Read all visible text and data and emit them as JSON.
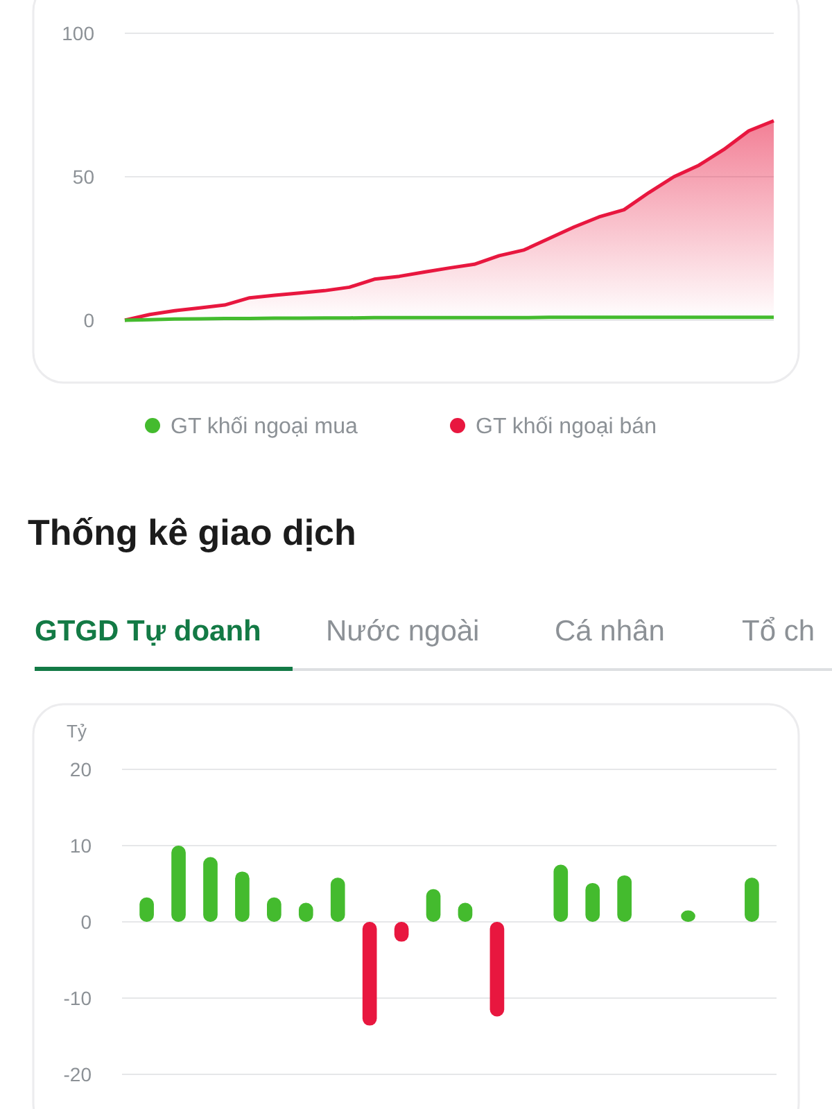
{
  "chart_data": [
    {
      "type": "line",
      "categories": [
        null,
        null,
        null,
        null,
        null,
        null,
        null,
        null,
        null,
        null,
        null,
        null,
        null,
        null,
        null,
        null,
        null,
        null,
        null,
        null,
        null,
        null,
        null,
        null,
        null,
        null,
        null
      ],
      "ylim": [
        0,
        100
      ],
      "yticks": [
        0,
        50,
        100
      ],
      "grid": "y",
      "legend": "bottom",
      "series": [
        {
          "name": "GT khối ngoại mua",
          "type": "line",
          "color": "#44bb2e",
          "values": [
            0,
            0.2,
            0.4,
            0.5,
            0.6,
            0.6,
            0.7,
            0.7,
            0.8,
            0.8,
            0.9,
            0.9,
            0.9,
            0.9,
            0.9,
            0.9,
            0.9,
            1,
            1,
            1,
            1,
            1,
            1,
            1,
            1,
            1,
            1
          ]
        },
        {
          "name": "GT khối ngoại bán",
          "type": "area",
          "color": "#e8173f",
          "values": [
            0,
            2,
            3.3,
            4.3,
            5.3,
            7.8,
            8.7,
            9.5,
            10.3,
            11.5,
            14.3,
            15.3,
            16.8,
            18.2,
            19.5,
            22.5,
            24.5,
            28.5,
            32.5,
            36,
            38.5,
            44.5,
            50,
            54,
            59.5,
            66,
            69.5
          ]
        }
      ]
    },
    {
      "type": "bar",
      "title": "Thống kê giao dịch",
      "annotations": [
        "GTGD Tự doanh",
        "Nước ngoài",
        "Cá nhân",
        "Tổ ch"
      ],
      "ylabel": "Tỷ",
      "categories": [
        null,
        null,
        null,
        null,
        null,
        null,
        null,
        null,
        null,
        null,
        null,
        null,
        null,
        null,
        null,
        null,
        null,
        null,
        null,
        null
      ],
      "ylim": [
        -20,
        20
      ],
      "yticks": [
        -20,
        -10,
        0,
        10,
        20
      ],
      "grid": "y",
      "values": [
        3.2,
        10,
        8.5,
        6.6,
        3.2,
        2.5,
        5.8,
        -13.6,
        -2.6,
        4.3,
        2.5,
        -12.4,
        null,
        7.5,
        5.1,
        6.1,
        null,
        1.5,
        null,
        5.8
      ],
      "colors": [
        "#44bb2e",
        "#44bb2e",
        "#44bb2e",
        "#44bb2e",
        "#44bb2e",
        "#44bb2e",
        "#44bb2e",
        "#e8173f",
        "#e8173f",
        "#44bb2e",
        "#44bb2e",
        "#e8173f",
        null,
        "#44bb2e",
        "#44bb2e",
        "#44bb2e",
        null,
        "#44bb2e",
        null,
        "#44bb2e"
      ]
    }
  ]
}
